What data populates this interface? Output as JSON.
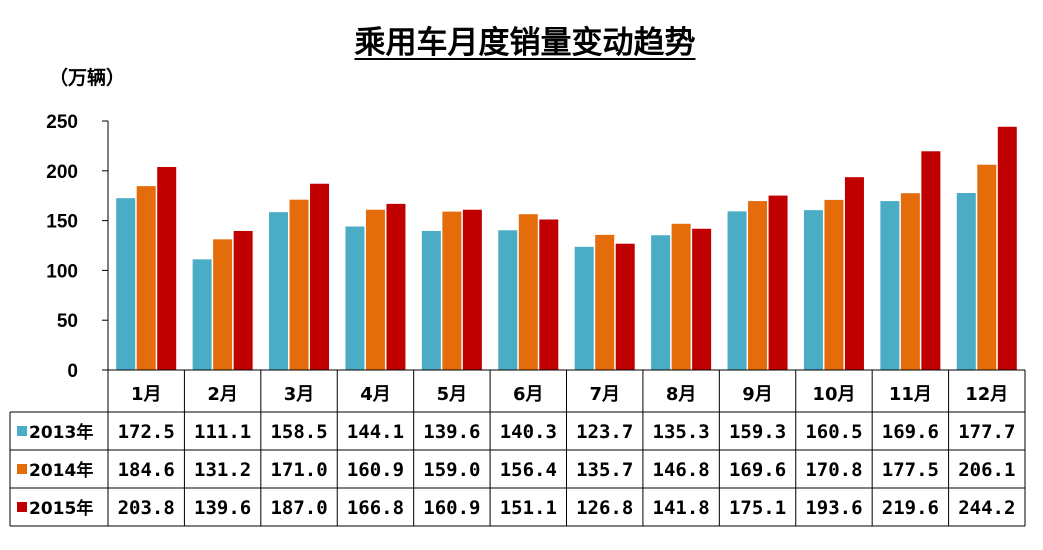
{
  "title": "乘用车月度销量变动趋势",
  "unit_label": "（万辆）",
  "chart_data": {
    "type": "bar",
    "title": "乘用车月度销量变动趋势",
    "ylabel": "（万辆）",
    "xlabel": "",
    "ylim": [
      0,
      250
    ],
    "yticks": [
      0,
      50,
      100,
      150,
      200,
      250
    ],
    "grid": false,
    "legend": "table-left",
    "categories": [
      "1月",
      "2月",
      "3月",
      "4月",
      "5月",
      "6月",
      "7月",
      "8月",
      "9月",
      "10月",
      "11月",
      "12月"
    ],
    "series": [
      {
        "name": "2013年",
        "color": "#4BACC6",
        "values": [
          172.5,
          111.1,
          158.5,
          144.1,
          139.6,
          140.3,
          123.7,
          135.3,
          159.3,
          160.5,
          169.6,
          177.7
        ],
        "labels": [
          "172.5",
          "111.1",
          "158.5",
          "144.1",
          "139.6",
          "140.3",
          "123.7",
          "135.3",
          "159.3",
          "160.5",
          "169.6",
          "177.7"
        ]
      },
      {
        "name": "2014年",
        "color": "#E46C0A",
        "values": [
          184.6,
          131.2,
          171.0,
          160.9,
          159.0,
          156.4,
          135.7,
          146.8,
          169.6,
          170.8,
          177.5,
          206.1
        ],
        "labels": [
          "184.6",
          "131.2",
          "171.0",
          "160.9",
          "159.0",
          "156.4",
          "135.7",
          "146.8",
          "169.6",
          "170.8",
          "177.5",
          "206.1"
        ]
      },
      {
        "name": "2015年",
        "color": "#C00000",
        "values": [
          203.8,
          139.6,
          187.0,
          166.8,
          160.9,
          151.1,
          126.8,
          141.8,
          175.1,
          193.6,
          219.6,
          244.2
        ],
        "labels": [
          "203.8",
          "139.6",
          "187.0",
          "166.8",
          "160.9",
          "151.1",
          "126.8",
          "141.8",
          "175.1",
          "193.6",
          "219.6",
          "244.2"
        ]
      }
    ]
  }
}
